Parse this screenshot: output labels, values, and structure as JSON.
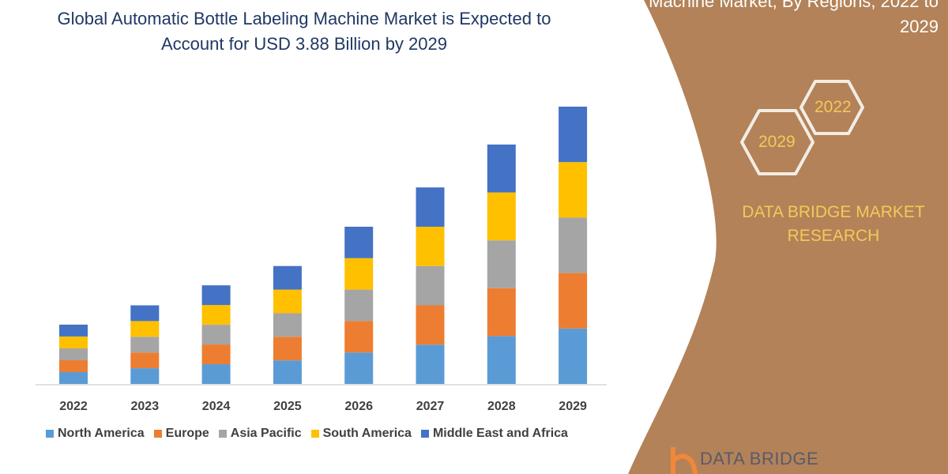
{
  "title": "Global Automatic Bottle Labeling Machine Market is Expected to Account for USD 3.88 Billion by 2029",
  "side_panel": {
    "title": "Machine Market, By Regions, 2022 to 2029",
    "hex_years": [
      "2022",
      "2029"
    ],
    "brand": "DATA BRIDGE MARKET RESEARCH",
    "logo_text": "DATA BRIDGE",
    "panel_color": "#b38258",
    "accent_color": "#f5c85a"
  },
  "chart_data": {
    "type": "bar",
    "stacked": true,
    "title": "Global Automatic Bottle Labeling Machine Market is Expected to Account for USD 3.88 Billion by 2029",
    "xlabel": "",
    "ylabel": "",
    "y_axis_shown": false,
    "grid": false,
    "legend_position": "bottom",
    "categories": [
      "2022",
      "2023",
      "2024",
      "2025",
      "2026",
      "2027",
      "2028",
      "2029"
    ],
    "ylim": [
      0,
      3.88
    ],
    "series": [
      {
        "name": "North America",
        "color": "#5b9bd5",
        "values": [
          0.166,
          0.22,
          0.276,
          0.33,
          0.44,
          0.55,
          0.67,
          0.776
        ]
      },
      {
        "name": "Europe",
        "color": "#ed7d31",
        "values": [
          0.166,
          0.22,
          0.276,
          0.33,
          0.44,
          0.55,
          0.67,
          0.776
        ]
      },
      {
        "name": "Asia Pacific",
        "color": "#a5a5a5",
        "values": [
          0.166,
          0.22,
          0.276,
          0.33,
          0.44,
          0.55,
          0.67,
          0.776
        ]
      },
      {
        "name": "South America",
        "color": "#ffc000",
        "values": [
          0.166,
          0.22,
          0.276,
          0.33,
          0.44,
          0.55,
          0.67,
          0.776
        ]
      },
      {
        "name": "Middle East and Africa",
        "color": "#4472c4",
        "values": [
          0.166,
          0.22,
          0.276,
          0.33,
          0.44,
          0.55,
          0.67,
          0.776
        ]
      }
    ]
  }
}
